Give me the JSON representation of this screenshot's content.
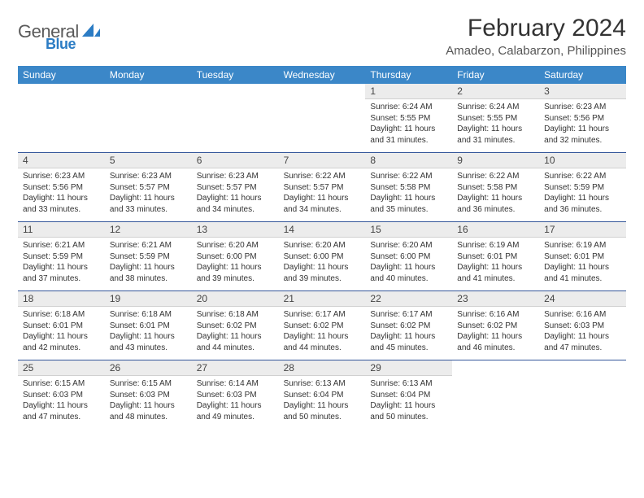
{
  "logo": {
    "text1": "General",
    "text2": "Blue"
  },
  "title": "February 2024",
  "location": "Amadeo, Calabarzon, Philippines",
  "colors": {
    "headerBg": "#3b87c8",
    "headerText": "#ffffff",
    "dayNumBg": "#ececec",
    "weekDivider": "#34569a",
    "logoBlue": "#2b7cc4"
  },
  "dayNames": [
    "Sunday",
    "Monday",
    "Tuesday",
    "Wednesday",
    "Thursday",
    "Friday",
    "Saturday"
  ],
  "weeks": [
    [
      null,
      null,
      null,
      null,
      {
        "n": "1",
        "sr": "6:24 AM",
        "ss": "5:55 PM",
        "dl": "11 hours and 31 minutes."
      },
      {
        "n": "2",
        "sr": "6:24 AM",
        "ss": "5:55 PM",
        "dl": "11 hours and 31 minutes."
      },
      {
        "n": "3",
        "sr": "6:23 AM",
        "ss": "5:56 PM",
        "dl": "11 hours and 32 minutes."
      }
    ],
    [
      {
        "n": "4",
        "sr": "6:23 AM",
        "ss": "5:56 PM",
        "dl": "11 hours and 33 minutes."
      },
      {
        "n": "5",
        "sr": "6:23 AM",
        "ss": "5:57 PM",
        "dl": "11 hours and 33 minutes."
      },
      {
        "n": "6",
        "sr": "6:23 AM",
        "ss": "5:57 PM",
        "dl": "11 hours and 34 minutes."
      },
      {
        "n": "7",
        "sr": "6:22 AM",
        "ss": "5:57 PM",
        "dl": "11 hours and 34 minutes."
      },
      {
        "n": "8",
        "sr": "6:22 AM",
        "ss": "5:58 PM",
        "dl": "11 hours and 35 minutes."
      },
      {
        "n": "9",
        "sr": "6:22 AM",
        "ss": "5:58 PM",
        "dl": "11 hours and 36 minutes."
      },
      {
        "n": "10",
        "sr": "6:22 AM",
        "ss": "5:59 PM",
        "dl": "11 hours and 36 minutes."
      }
    ],
    [
      {
        "n": "11",
        "sr": "6:21 AM",
        "ss": "5:59 PM",
        "dl": "11 hours and 37 minutes."
      },
      {
        "n": "12",
        "sr": "6:21 AM",
        "ss": "5:59 PM",
        "dl": "11 hours and 38 minutes."
      },
      {
        "n": "13",
        "sr": "6:20 AM",
        "ss": "6:00 PM",
        "dl": "11 hours and 39 minutes."
      },
      {
        "n": "14",
        "sr": "6:20 AM",
        "ss": "6:00 PM",
        "dl": "11 hours and 39 minutes."
      },
      {
        "n": "15",
        "sr": "6:20 AM",
        "ss": "6:00 PM",
        "dl": "11 hours and 40 minutes."
      },
      {
        "n": "16",
        "sr": "6:19 AM",
        "ss": "6:01 PM",
        "dl": "11 hours and 41 minutes."
      },
      {
        "n": "17",
        "sr": "6:19 AM",
        "ss": "6:01 PM",
        "dl": "11 hours and 41 minutes."
      }
    ],
    [
      {
        "n": "18",
        "sr": "6:18 AM",
        "ss": "6:01 PM",
        "dl": "11 hours and 42 minutes."
      },
      {
        "n": "19",
        "sr": "6:18 AM",
        "ss": "6:01 PM",
        "dl": "11 hours and 43 minutes."
      },
      {
        "n": "20",
        "sr": "6:18 AM",
        "ss": "6:02 PM",
        "dl": "11 hours and 44 minutes."
      },
      {
        "n": "21",
        "sr": "6:17 AM",
        "ss": "6:02 PM",
        "dl": "11 hours and 44 minutes."
      },
      {
        "n": "22",
        "sr": "6:17 AM",
        "ss": "6:02 PM",
        "dl": "11 hours and 45 minutes."
      },
      {
        "n": "23",
        "sr": "6:16 AM",
        "ss": "6:02 PM",
        "dl": "11 hours and 46 minutes."
      },
      {
        "n": "24",
        "sr": "6:16 AM",
        "ss": "6:03 PM",
        "dl": "11 hours and 47 minutes."
      }
    ],
    [
      {
        "n": "25",
        "sr": "6:15 AM",
        "ss": "6:03 PM",
        "dl": "11 hours and 47 minutes."
      },
      {
        "n": "26",
        "sr": "6:15 AM",
        "ss": "6:03 PM",
        "dl": "11 hours and 48 minutes."
      },
      {
        "n": "27",
        "sr": "6:14 AM",
        "ss": "6:03 PM",
        "dl": "11 hours and 49 minutes."
      },
      {
        "n": "28",
        "sr": "6:13 AM",
        "ss": "6:04 PM",
        "dl": "11 hours and 50 minutes."
      },
      {
        "n": "29",
        "sr": "6:13 AM",
        "ss": "6:04 PM",
        "dl": "11 hours and 50 minutes."
      },
      null,
      null
    ]
  ],
  "labels": {
    "sunrise": "Sunrise: ",
    "sunset": "Sunset: ",
    "daylight": "Daylight: "
  }
}
